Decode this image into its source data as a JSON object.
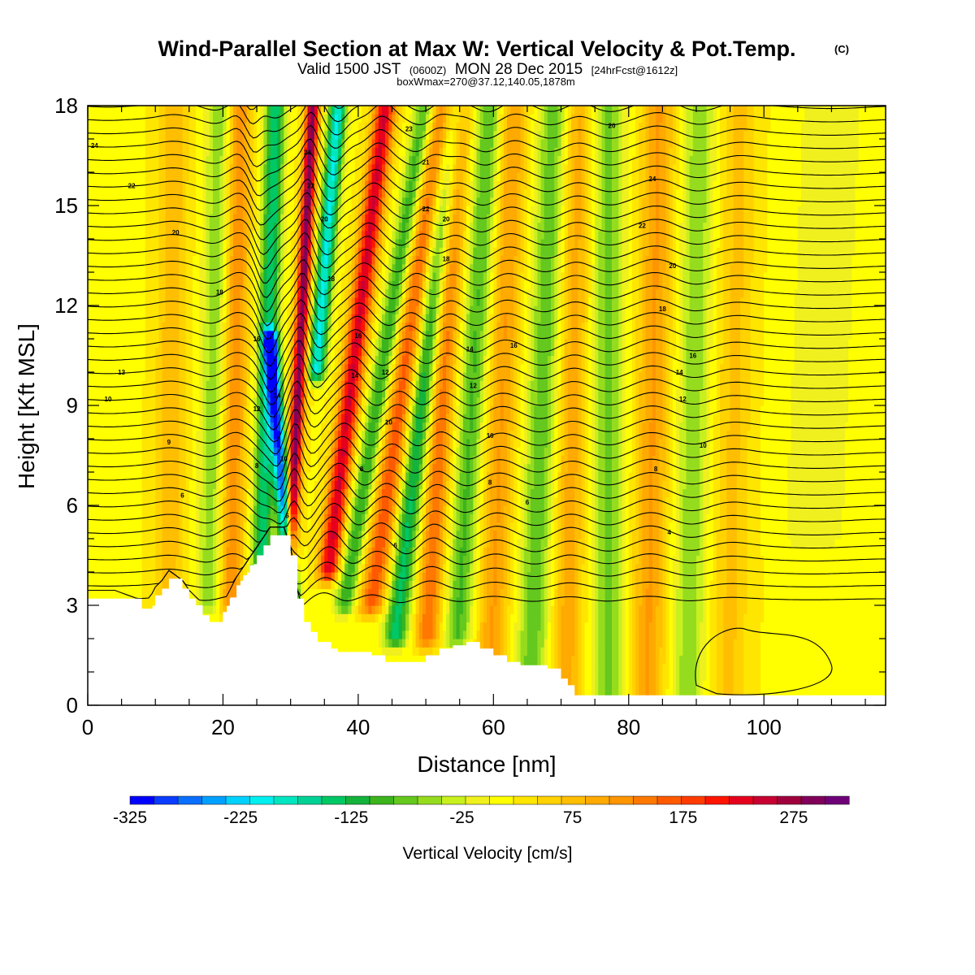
{
  "header": {
    "title": "Wind-Parallel Section at Max W: Vertical Velocity & Pot.Temp.",
    "copyright": "(C)",
    "valid_prefix": "Valid 1500 JST",
    "valid_utc": "(0600Z)",
    "valid_date": "MON 28 Dec 2015",
    "forecast": "[24hrFcst@1612z]",
    "box_info": "boxWmax=270@37.12,140.05,1878m"
  },
  "chart_data": {
    "type": "heatmap",
    "xlabel": "Distance [nm]",
    "ylabel": "Height [Kft MSL]",
    "xlim": [
      0,
      118
    ],
    "ylim": [
      0,
      18
    ],
    "x_ticks": [
      0,
      20,
      40,
      60,
      80,
      100
    ],
    "y_ticks": [
      0,
      3,
      6,
      9,
      12,
      15,
      18
    ],
    "colorbar": {
      "title": "Vertical Velocity [cm/s]",
      "min": -325,
      "max": 325,
      "step": 25,
      "tick_labels": [
        "-325",
        "-225",
        "-125",
        "-25",
        "75",
        "175",
        "275"
      ],
      "colors": [
        "#0000ff",
        "#0a3cff",
        "#0a6eff",
        "#00a0ff",
        "#00d2ff",
        "#00f0f0",
        "#00e6c0",
        "#00d296",
        "#00c864",
        "#14b43c",
        "#3cb41e",
        "#64c81e",
        "#96dc1e",
        "#c8f01e",
        "#f0f01e",
        "#ffff00",
        "#ffe600",
        "#ffd200",
        "#ffbe00",
        "#ffaa00",
        "#ff9600",
        "#ff7800",
        "#ff5a00",
        "#ff3c00",
        "#ff1400",
        "#e6001e",
        "#c80032",
        "#a0003c",
        "#80005a",
        "#6e0078"
      ]
    },
    "velocity_field": {
      "units": "cm/s",
      "background": 20,
      "bands": [
        {
          "x_base": 3,
          "lean": 0.0,
          "width": 2.5,
          "amp": -20,
          "y_min": 3,
          "y_max": 18
        },
        {
          "x_base": 12,
          "lean": 0.05,
          "width": 2.2,
          "amp": 60,
          "y_min": 3,
          "y_max": 18
        },
        {
          "x_base": 18,
          "lean": 0.1,
          "width": 2.0,
          "amp": -80,
          "y_min": 3,
          "y_max": 18
        },
        {
          "x_base": 21,
          "lean": 0.1,
          "width": 1.8,
          "amp": 110,
          "y_min": 3,
          "y_max": 18
        },
        {
          "x_base": 25.5,
          "lean": 0.15,
          "width": 1.5,
          "amp": -170,
          "y_min": 3.5,
          "y_max": 18
        },
        {
          "x_base": 29.5,
          "lean": 0.25,
          "width": 1.0,
          "amp": 280,
          "y_min": 4.5,
          "y_max": 18
        },
        {
          "x_base": 30.2,
          "lean": -0.4,
          "width": 1.1,
          "amp": -300,
          "y_min": 3.2,
          "y_max": 11
        },
        {
          "x_base": 31,
          "lean": 0.4,
          "width": 1.3,
          "amp": -220,
          "y_min": 10,
          "y_max": 18
        },
        {
          "x_base": 35,
          "lean": 0.6,
          "width": 1.6,
          "amp": 220,
          "y_min": 4,
          "y_max": 18
        },
        {
          "x_base": 38,
          "lean": 0.8,
          "width": 1.6,
          "amp": -130,
          "y_min": 3,
          "y_max": 18
        },
        {
          "x_base": 42,
          "lean": 0.7,
          "width": 2.0,
          "amp": 150,
          "y_min": 3,
          "y_max": 18
        },
        {
          "x_base": 46,
          "lean": 0.55,
          "width": 1.8,
          "amp": -160,
          "y_min": 2,
          "y_max": 18
        },
        {
          "x_base": 50.5,
          "lean": 0.3,
          "width": 1.8,
          "amp": 130,
          "y_min": 2,
          "y_max": 18
        },
        {
          "x_base": 55,
          "lean": 0.3,
          "width": 2.0,
          "amp": -110,
          "y_min": 2,
          "y_max": 18
        },
        {
          "x_base": 60,
          "lean": 0.2,
          "width": 2.2,
          "amp": 90,
          "y_min": 1,
          "y_max": 18
        },
        {
          "x_base": 66,
          "lean": 0.2,
          "width": 2.4,
          "amp": -100,
          "y_min": 0.3,
          "y_max": 18
        },
        {
          "x_base": 71,
          "lean": 0.1,
          "width": 2.2,
          "amp": 80,
          "y_min": 0.3,
          "y_max": 18
        },
        {
          "x_base": 77,
          "lean": 0.0,
          "width": 2.4,
          "amp": -90,
          "y_min": 0.3,
          "y_max": 18
        },
        {
          "x_base": 83,
          "lean": 0.1,
          "width": 2.4,
          "amp": 90,
          "y_min": 0.3,
          "y_max": 18
        },
        {
          "x_base": 89,
          "lean": 0.1,
          "width": 2.4,
          "amp": -80,
          "y_min": 0.3,
          "y_max": 18
        },
        {
          "x_base": 95,
          "lean": 0.1,
          "width": 2.6,
          "amp": 50,
          "y_min": 0.3,
          "y_max": 18
        },
        {
          "x_base": 107,
          "lean": 0.2,
          "width": 5.0,
          "amp": -40,
          "y_min": 5,
          "y_max": 18
        }
      ]
    },
    "terrain": {
      "units": "kft",
      "x": [
        0,
        4,
        8,
        9,
        10,
        11,
        12,
        14,
        15,
        16,
        17,
        18,
        19,
        20,
        21,
        22,
        23,
        24,
        25,
        26,
        27,
        28,
        29,
        30,
        31,
        32,
        33,
        34,
        35,
        36,
        37,
        38,
        40,
        42,
        44,
        46,
        48,
        50,
        52,
        54,
        56,
        58,
        60,
        62,
        64,
        66,
        68,
        70,
        71,
        72,
        80,
        100,
        118
      ],
      "y": [
        3.2,
        3.2,
        2.9,
        2.9,
        3.3,
        3.5,
        3.8,
        3.5,
        3.2,
        3.0,
        2.7,
        2.5,
        2.5,
        2.8,
        3.2,
        3.6,
        3.9,
        4.2,
        4.5,
        4.8,
        5.1,
        5.1,
        5.1,
        4.5,
        3.2,
        2.5,
        2.2,
        1.9,
        1.9,
        1.7,
        1.6,
        1.6,
        1.6,
        1.5,
        1.3,
        1.3,
        1.3,
        1.5,
        1.7,
        1.8,
        1.9,
        1.7,
        1.5,
        1.3,
        1.2,
        1.2,
        1.1,
        0.8,
        0.6,
        0.3,
        0.3,
        0.3,
        0.3
      ]
    },
    "theta_contours": {
      "count": 39,
      "base_levels_kft": [
        0.6,
        1.0,
        1.4,
        1.8,
        2.2,
        2.6,
        3.0,
        3.4,
        3.8,
        4.2,
        4.6,
        5.0,
        5.4,
        5.8,
        6.2,
        6.6,
        7.0,
        7.4,
        7.8,
        8.2,
        8.6,
        9.0,
        9.4,
        9.8,
        10.2,
        10.6,
        11.0,
        11.4,
        11.8,
        12.2,
        12.6,
        13.0,
        13.4,
        13.8,
        14.2,
        14.6,
        15.0,
        15.4,
        15.8
      ],
      "labels": [
        "4",
        "6",
        "8",
        "10",
        "12",
        "14",
        "16",
        "18",
        "20",
        "22",
        "24"
      ]
    },
    "contour_labels": [
      {
        "text": "24",
        "x": 1,
        "y": 16.8
      },
      {
        "text": "22",
        "x": 6.5,
        "y": 15.6
      },
      {
        "text": "20",
        "x": 13,
        "y": 14.2
      },
      {
        "text": "18",
        "x": 19.5,
        "y": 12.4
      },
      {
        "text": "16",
        "x": 25,
        "y": 11.0
      },
      {
        "text": "14",
        "x": 28,
        "y": 9.3
      },
      {
        "text": "13",
        "x": 5,
        "y": 10.0
      },
      {
        "text": "12",
        "x": 25,
        "y": 8.9
      },
      {
        "text": "10",
        "x": 3,
        "y": 9.2
      },
      {
        "text": "9",
        "x": 12,
        "y": 7.9
      },
      {
        "text": "8",
        "x": 25,
        "y": 7.2
      },
      {
        "text": "6",
        "x": 14,
        "y": 6.3
      },
      {
        "text": "10",
        "x": 29,
        "y": 7.4
      },
      {
        "text": "6",
        "x": 29.5,
        "y": 5.7
      },
      {
        "text": "24",
        "x": 32.5,
        "y": 16.6
      },
      {
        "text": "22",
        "x": 33,
        "y": 15.6
      },
      {
        "text": "20",
        "x": 35,
        "y": 14.6
      },
      {
        "text": "18",
        "x": 36,
        "y": 12.8
      },
      {
        "text": "16",
        "x": 40,
        "y": 11.1
      },
      {
        "text": "14",
        "x": 39.5,
        "y": 9.9
      },
      {
        "text": "8",
        "x": 40.5,
        "y": 7.1
      },
      {
        "text": "12",
        "x": 44,
        "y": 10.0
      },
      {
        "text": "10",
        "x": 44.5,
        "y": 8.5
      },
      {
        "text": "6",
        "x": 45.5,
        "y": 4.8
      },
      {
        "text": "23",
        "x": 47.5,
        "y": 17.3
      },
      {
        "text": "21",
        "x": 50,
        "y": 16.3
      },
      {
        "text": "22",
        "x": 50,
        "y": 14.9
      },
      {
        "text": "20",
        "x": 53,
        "y": 14.6
      },
      {
        "text": "18",
        "x": 53,
        "y": 13.4
      },
      {
        "text": "14",
        "x": 56.5,
        "y": 10.7
      },
      {
        "text": "12",
        "x": 57,
        "y": 9.6
      },
      {
        "text": "10",
        "x": 59.5,
        "y": 8.1
      },
      {
        "text": "8",
        "x": 59.5,
        "y": 6.7
      },
      {
        "text": "6",
        "x": 65,
        "y": 6.1
      },
      {
        "text": "16",
        "x": 63,
        "y": 10.8
      },
      {
        "text": "20",
        "x": 77.5,
        "y": 17.4
      },
      {
        "text": "24",
        "x": 83.5,
        "y": 15.8
      },
      {
        "text": "22",
        "x": 82,
        "y": 14.4
      },
      {
        "text": "20",
        "x": 86.5,
        "y": 13.2
      },
      {
        "text": "18",
        "x": 85,
        "y": 11.9
      },
      {
        "text": "16",
        "x": 89.5,
        "y": 10.5
      },
      {
        "text": "14",
        "x": 87.5,
        "y": 10.0
      },
      {
        "text": "12",
        "x": 88,
        "y": 9.2
      },
      {
        "text": "10",
        "x": 91,
        "y": 7.8
      },
      {
        "text": "8",
        "x": 84,
        "y": 7.1
      },
      {
        "text": "4",
        "x": 86,
        "y": 5.2
      }
    ]
  }
}
